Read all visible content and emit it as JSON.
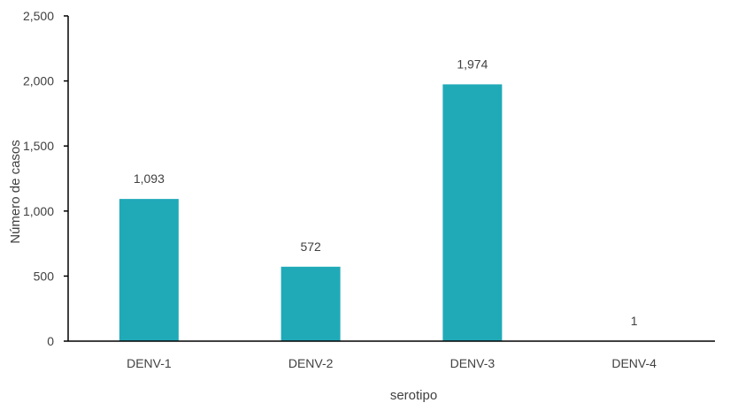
{
  "chart_data": {
    "type": "bar",
    "categories": [
      "DENV-1",
      "DENV-2",
      "DENV-3",
      "DENV-4"
    ],
    "values": [
      1093,
      572,
      1974,
      1
    ],
    "data_labels": [
      "1,093",
      "572",
      "1,974",
      "1"
    ],
    "title": "",
    "xlabel": "serotipo",
    "ylabel": "Número de casos",
    "ylim": [
      0,
      2500
    ],
    "yticks": [
      0,
      500,
      1000,
      1500,
      2000,
      2500
    ],
    "ytick_labels": [
      "0",
      "500",
      "1,000",
      "1,500",
      "2,000",
      "2,500"
    ],
    "grid": false,
    "legend": "none",
    "bar_color": "#20aab8"
  }
}
